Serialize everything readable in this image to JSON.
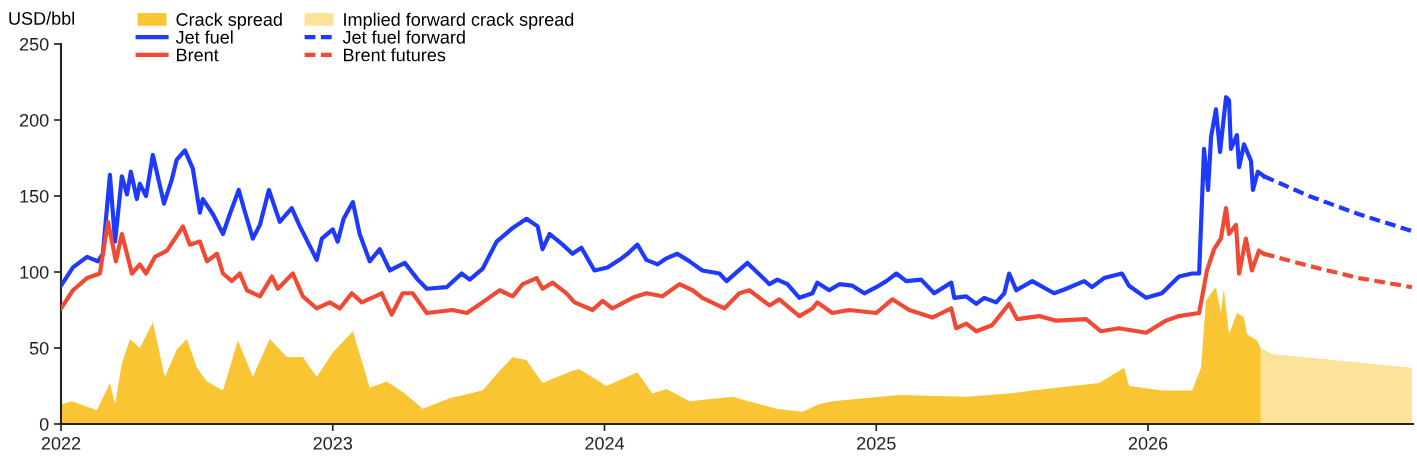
{
  "chart_data": {
    "type": "line",
    "ylabel": "USD/bbl",
    "xlim": [
      2022,
      2026.975
    ],
    "xticks": [
      2022,
      2023,
      2024,
      2025,
      2026
    ],
    "ylim": [
      0,
      250
    ],
    "yticks": [
      0,
      50,
      100,
      150,
      200,
      250
    ],
    "grid": false,
    "legend": "top left",
    "series": [
      {
        "name": "Crack spread",
        "type": "area",
        "color": "#f9c532",
        "x": [
          2022.004,
          2022.04,
          2022.132,
          2022.18,
          2022.199,
          2022.224,
          2022.254,
          2022.29,
          2022.338,
          2022.382,
          2022.426,
          2022.463,
          2022.5,
          2022.537,
          2022.596,
          2022.651,
          2022.706,
          2022.768,
          2022.831,
          2022.89,
          2022.941,
          2023.0,
          2023.074,
          2023.136,
          2023.199,
          2023.265,
          2023.331,
          2023.43,
          2023.551,
          2023.614,
          2023.662,
          2023.713,
          2023.772,
          2023.882,
          2023.908,
          2024.007,
          2024.121,
          2024.176,
          2024.228,
          2024.313,
          2024.471,
          2024.632,
          2024.728,
          2024.79,
          2024.838,
          2025.085,
          2025.331,
          2025.489,
          2025.574,
          2025.82,
          2025.912,
          2025.93,
          2026.051,
          2026.162,
          2026.195,
          2026.213,
          2026.232,
          2026.25,
          2026.268,
          2026.279,
          2026.298,
          2026.327,
          2026.353,
          2026.364,
          2026.401,
          2026.415
        ],
        "values": [
          13,
          15,
          9,
          27,
          13,
          40,
          56,
          50,
          67,
          31,
          49,
          56,
          37,
          28,
          22,
          55,
          31,
          56,
          44,
          44,
          31,
          47,
          61,
          24,
          28,
          20,
          10,
          17,
          22,
          35,
          44,
          42,
          27,
          35,
          36,
          25,
          34,
          20,
          23,
          15,
          18,
          10,
          8,
          13,
          15,
          19,
          18,
          20,
          22,
          27,
          37,
          25,
          22,
          22,
          37,
          81,
          86,
          90,
          73,
          89,
          59,
          73,
          70,
          59,
          55,
          50
        ]
      },
      {
        "name": "Jet fuel",
        "color": "#1f3aff",
        "line_style": "solid",
        "x": [
          2022.0,
          2022.044,
          2022.096,
          2022.136,
          2022.154,
          2022.18,
          2022.199,
          2022.224,
          2022.243,
          2022.257,
          2022.279,
          2022.29,
          2022.313,
          2022.338,
          2022.379,
          2022.408,
          2022.426,
          2022.456,
          2022.485,
          2022.511,
          2022.522,
          2022.559,
          2022.596,
          2022.621,
          2022.654,
          2022.676,
          2022.706,
          2022.732,
          2022.765,
          2022.805,
          2022.849,
          2022.879,
          2022.941,
          2022.96,
          2023.0,
          2023.018,
          2023.04,
          2023.074,
          2023.099,
          2023.136,
          2023.173,
          2023.21,
          2023.265,
          2023.313,
          2023.346,
          2023.419,
          2023.474,
          2023.504,
          2023.551,
          2023.603,
          2023.662,
          2023.713,
          2023.754,
          2023.772,
          2023.798,
          2023.846,
          2023.882,
          2023.915,
          2023.963,
          2024.011,
          2024.055,
          2024.085,
          2024.121,
          2024.154,
          2024.195,
          2024.228,
          2024.268,
          2024.313,
          2024.36,
          2024.423,
          2024.449,
          2024.526,
          2024.607,
          2024.636,
          2024.673,
          2024.717,
          2024.765,
          2024.783,
          2024.827,
          2024.864,
          2024.912,
          2024.956,
          2025.0,
          2025.037,
          2025.074,
          2025.11,
          2025.165,
          2025.213,
          2025.276,
          2025.287,
          2025.331,
          2025.368,
          2025.397,
          2025.441,
          2025.471,
          2025.489,
          2025.515,
          2025.574,
          2025.654,
          2025.699,
          2025.765,
          2025.794,
          2025.838,
          2025.904,
          2025.93,
          2025.993,
          2026.051,
          2026.114,
          2026.162,
          2026.188,
          2026.206,
          2026.221,
          2026.232,
          2026.25,
          2026.265,
          2026.287,
          2026.298,
          2026.305,
          2026.327,
          2026.335,
          2026.353,
          2026.379,
          2026.386,
          2026.404,
          2026.426
        ],
        "values": [
          91,
          103,
          110,
          107,
          112,
          164,
          120,
          163,
          151,
          166,
          148,
          158,
          150,
          177,
          145,
          161,
          174,
          180,
          168,
          139,
          148,
          138,
          125,
          138,
          154,
          140,
          122,
          131,
          154,
          133,
          142,
          130,
          108,
          122,
          128,
          120,
          135,
          146,
          125,
          107,
          115,
          101,
          106,
          95,
          89,
          90,
          99,
          95,
          102,
          120,
          129,
          135,
          130,
          115,
          125,
          118,
          112,
          116,
          101,
          103,
          108,
          112,
          118,
          108,
          105,
          109,
          112,
          107,
          101,
          99,
          94,
          106,
          92,
          95,
          92,
          83,
          86,
          93,
          88,
          92,
          91,
          86,
          90,
          94,
          99,
          94,
          95,
          86,
          93,
          83,
          84,
          79,
          83,
          80,
          86,
          99,
          88,
          94,
          86,
          89,
          94,
          90,
          96,
          99,
          91,
          83,
          86,
          97,
          99,
          99,
          181,
          154,
          189,
          207,
          179,
          215,
          213,
          181,
          190,
          169,
          184,
          173,
          154,
          166,
          163
        ]
      },
      {
        "name": "Brent",
        "color": "#f04a34",
        "line_style": "solid",
        "x": [
          2022.0,
          2022.044,
          2022.096,
          2022.143,
          2022.173,
          2022.202,
          2022.224,
          2022.261,
          2022.29,
          2022.313,
          2022.346,
          2022.39,
          2022.449,
          2022.474,
          2022.511,
          2022.537,
          2022.574,
          2022.596,
          2022.629,
          2022.658,
          2022.684,
          2022.732,
          2022.776,
          2022.798,
          2022.853,
          2022.89,
          2022.941,
          2022.989,
          2023.026,
          2023.07,
          2023.107,
          2023.18,
          2023.217,
          2023.257,
          2023.294,
          2023.346,
          2023.441,
          2023.493,
          2023.551,
          2023.614,
          2023.662,
          2023.699,
          2023.75,
          2023.772,
          2023.809,
          2023.86,
          2023.89,
          2023.956,
          2023.993,
          2024.029,
          2024.103,
          2024.154,
          2024.213,
          2024.276,
          2024.324,
          2024.36,
          2024.441,
          2024.496,
          2024.533,
          2024.607,
          2024.643,
          2024.717,
          2024.765,
          2024.783,
          2024.838,
          2024.901,
          2025.0,
          2025.059,
          2025.121,
          2025.206,
          2025.276,
          2025.294,
          2025.331,
          2025.368,
          2025.426,
          2025.489,
          2025.518,
          2025.599,
          2025.662,
          2025.772,
          2025.827,
          2025.893,
          2025.993,
          2026.066,
          2026.114,
          2026.188,
          2026.217,
          2026.243,
          2026.268,
          2026.287,
          2026.298,
          2026.324,
          2026.335,
          2026.36,
          2026.382,
          2026.408,
          2026.426
        ],
        "values": [
          76,
          88,
          96,
          99,
          133,
          107,
          125,
          99,
          105,
          99,
          110,
          114,
          130,
          118,
          120,
          107,
          112,
          99,
          94,
          99,
          88,
          84,
          97,
          89,
          99,
          84,
          76,
          80,
          76,
          86,
          80,
          86,
          72,
          86,
          86,
          73,
          75,
          73,
          80,
          88,
          84,
          92,
          96,
          89,
          93,
          86,
          80,
          75,
          81,
          76,
          83,
          86,
          84,
          92,
          88,
          83,
          76,
          86,
          88,
          78,
          82,
          71,
          76,
          80,
          73,
          75,
          73,
          82,
          75,
          70,
          76,
          63,
          66,
          61,
          65,
          79,
          69,
          71,
          68,
          69,
          61,
          63,
          60,
          68,
          71,
          73,
          101,
          115,
          122,
          142,
          125,
          131,
          99,
          122,
          101,
          114,
          112
        ]
      },
      {
        "name": "Implied forward crack spread",
        "type": "area",
        "color": "#fde29a",
        "x": [
          2026.415,
          2026.456,
          2026.971
        ],
        "values": [
          50,
          46,
          37
        ]
      },
      {
        "name": "Jet fuel forward",
        "color": "#1f3aff",
        "line_style": "dashed",
        "x": [
          2026.426,
          2026.592,
          2026.776,
          2026.971
        ],
        "values": [
          163,
          150,
          138,
          127
        ]
      },
      {
        "name": "Brent futures",
        "color": "#f04a34",
        "line_style": "dashed",
        "x": [
          2026.426,
          2026.592,
          2026.776,
          2026.971
        ],
        "values": [
          112,
          104,
          96,
          90
        ]
      }
    ]
  }
}
